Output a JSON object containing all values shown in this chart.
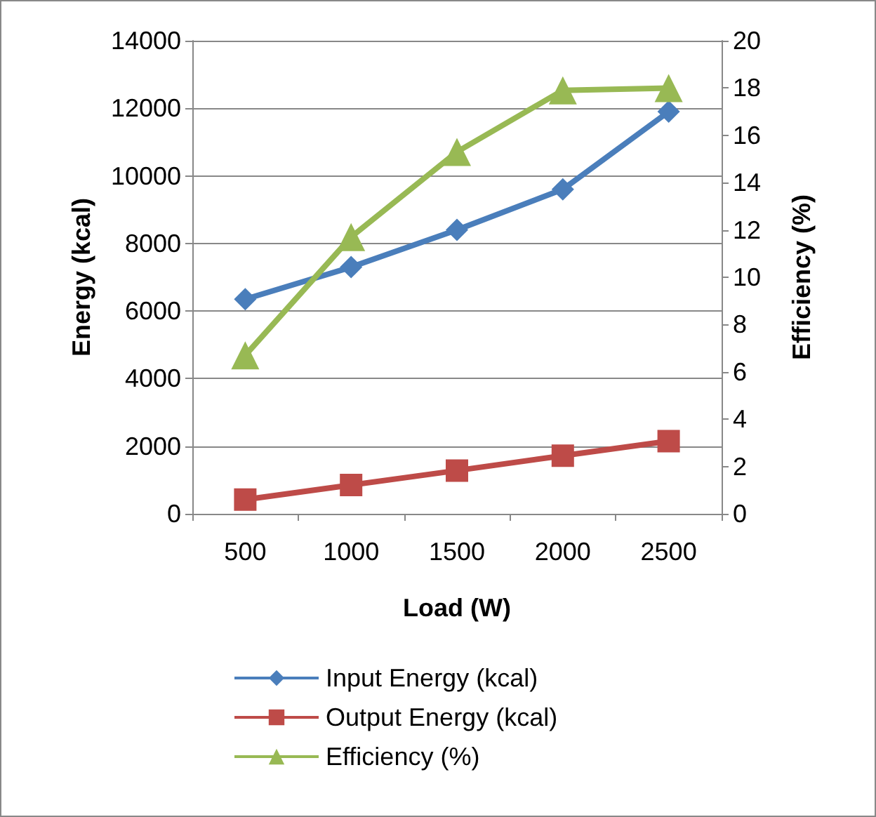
{
  "chart_data": {
    "type": "line",
    "xlabel": "Load (W)",
    "ylabel": "Energy (kcal)",
    "y2label": "Efficiency (%)",
    "categories": [
      "500",
      "1000",
      "1500",
      "2000",
      "2500"
    ],
    "series": [
      {
        "name": "Input Energy (kcal)",
        "color": "#4a7ebb",
        "marker": "diamond",
        "values": [
          6350,
          7300,
          8400,
          9600,
          11900
        ]
      },
      {
        "name": "Output Energy (kcal)",
        "color": "#be4b48",
        "marker": "square",
        "values": [
          420,
          850,
          1280,
          1720,
          2150
        ]
      },
      {
        "name": "Efficiency (%)",
        "color": "#98b954",
        "marker": "triangle",
        "axis": "y2",
        "values": [
          6.7,
          11.7,
          15.3,
          17.9,
          18.0
        ]
      }
    ],
    "ylim": [
      0,
      14000
    ],
    "yticks": [
      0,
      2000,
      4000,
      6000,
      8000,
      10000,
      12000,
      14000
    ],
    "y2lim": [
      0,
      20
    ],
    "y2ticks": [
      0,
      2,
      4,
      6,
      8,
      10,
      12,
      14,
      16,
      18,
      20
    ],
    "grid": "y",
    "legend": "bottom"
  }
}
